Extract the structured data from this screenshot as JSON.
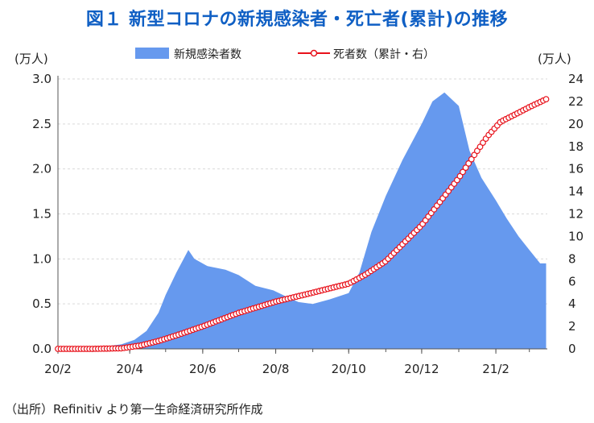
{
  "title": "図１ 新型コロナの新規感染者・死亡者(累計)の推移",
  "source": "（出所）Refinitiv より第一生命経済研究所作成",
  "chart_data": {
    "type": "area+line",
    "y_left_unit": "(万人)",
    "y_right_unit": "(万人)",
    "ylim_left": [
      0,
      3.0
    ],
    "ylim_right": [
      0,
      24
    ],
    "yticks_left": [
      "0.0",
      "0.5",
      "1.0",
      "1.5",
      "2.0",
      "2.5",
      "3.0"
    ],
    "yticks_right": [
      "0",
      "2",
      "4",
      "6",
      "8",
      "10",
      "12",
      "14",
      "16",
      "18",
      "20",
      "22",
      "24"
    ],
    "xticks": [
      "20/2",
      "20/4",
      "20/6",
      "20/8",
      "20/10",
      "20/12",
      "21/2"
    ],
    "grid": true,
    "legend_position": "top",
    "series": [
      {
        "name": "新規感染者数",
        "axis": "left",
        "style": "area",
        "color": "#6699ee",
        "x": [
          "2020-02-01",
          "2020-03-01",
          "2020-03-25",
          "2020-04-05",
          "2020-04-15",
          "2020-04-25",
          "2020-05-01",
          "2020-05-10",
          "2020-05-20",
          "2020-05-25",
          "2020-06-05",
          "2020-06-20",
          "2020-07-01",
          "2020-07-15",
          "2020-07-30",
          "2020-08-10",
          "2020-08-20",
          "2020-09-01",
          "2020-09-15",
          "2020-10-01",
          "2020-10-10",
          "2020-10-20",
          "2020-11-01",
          "2020-11-15",
          "2020-12-01",
          "2020-12-10",
          "2020-12-20",
          "2021-01-01",
          "2021-01-10",
          "2021-01-20",
          "2021-02-01",
          "2021-02-10",
          "2021-02-20",
          "2021-03-01",
          "2021-03-10",
          "2021-03-15"
        ],
        "values": [
          0.0,
          0.01,
          0.05,
          0.1,
          0.2,
          0.4,
          0.6,
          0.85,
          1.1,
          1.0,
          0.92,
          0.88,
          0.82,
          0.7,
          0.65,
          0.58,
          0.52,
          0.5,
          0.55,
          0.62,
          0.85,
          1.3,
          1.7,
          2.1,
          2.5,
          2.75,
          2.85,
          2.7,
          2.2,
          1.9,
          1.65,
          1.45,
          1.25,
          1.1,
          0.95,
          0.95
        ]
      },
      {
        "name": "死者数（累計・右）",
        "axis": "right",
        "style": "line-markers",
        "color": "#e8121b",
        "x": [
          "2020-02-01",
          "2020-03-01",
          "2020-03-25",
          "2020-04-10",
          "2020-04-25",
          "2020-05-10",
          "2020-06-01",
          "2020-07-01",
          "2020-08-01",
          "2020-09-01",
          "2020-10-01",
          "2020-10-15",
          "2020-11-01",
          "2020-11-15",
          "2020-12-01",
          "2020-12-15",
          "2021-01-01",
          "2021-01-15",
          "2021-01-25",
          "2021-02-05",
          "2021-02-20",
          "2021-03-01",
          "2021-03-15"
        ],
        "values": [
          0.0,
          0.0,
          0.05,
          0.3,
          0.7,
          1.2,
          2.0,
          3.2,
          4.2,
          5.0,
          5.8,
          6.6,
          7.8,
          9.3,
          11.0,
          12.9,
          15.2,
          17.4,
          18.9,
          20.2,
          21.0,
          21.5,
          22.2
        ]
      }
    ]
  }
}
